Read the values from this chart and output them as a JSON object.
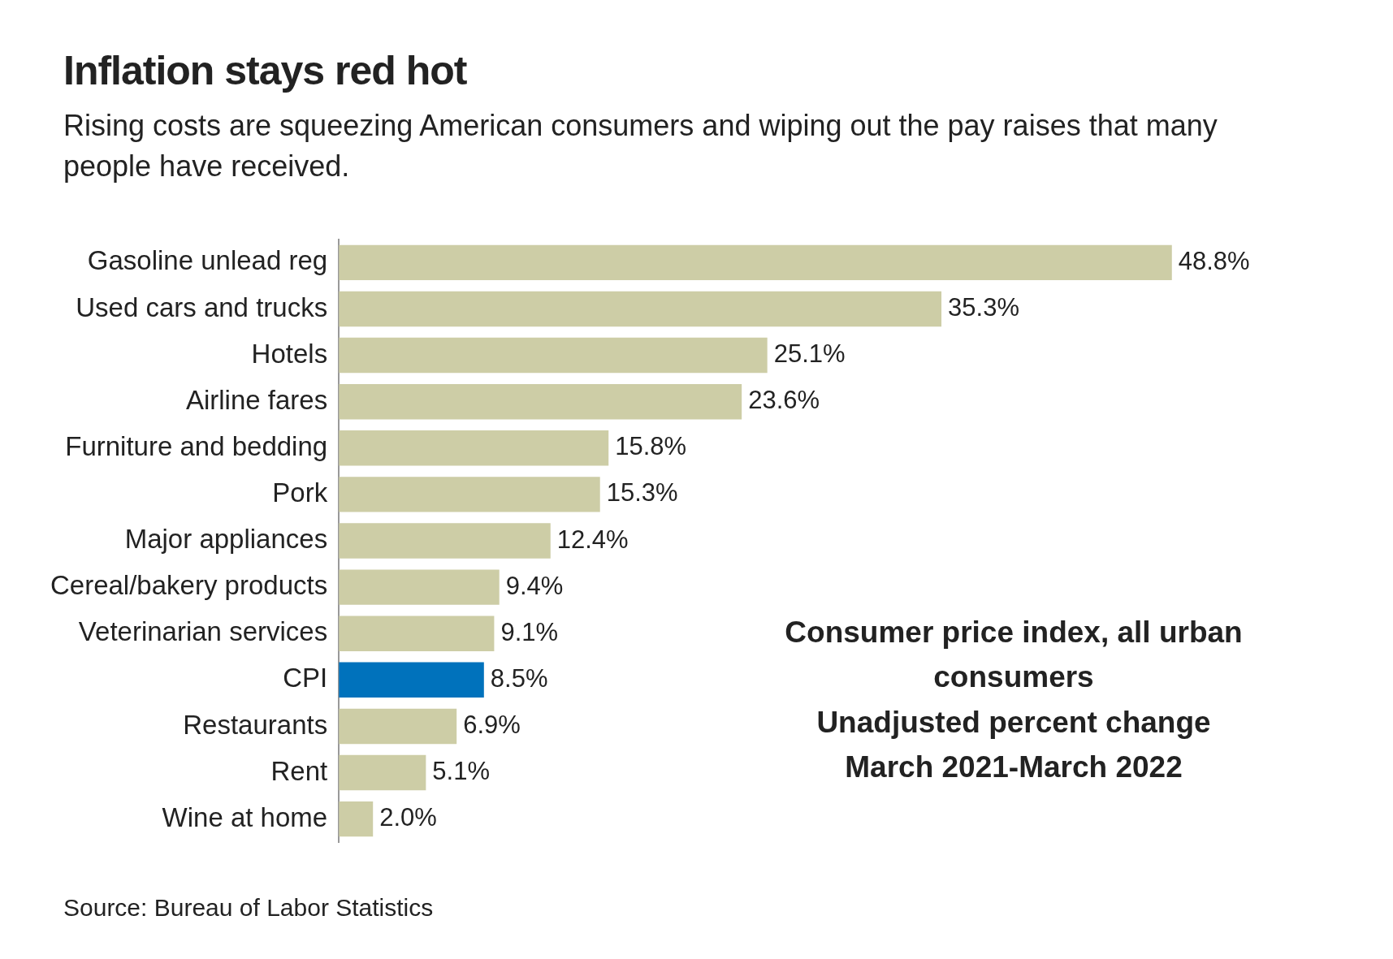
{
  "chart_data": {
    "type": "bar",
    "orientation": "horizontal",
    "title": "Inflation stays red hot",
    "subtitle": "Rising costs are squeezing American consumers and wiping out the pay raises that many people have received.",
    "categories": [
      "Gasoline unlead reg",
      "Used cars and trucks",
      "Hotels",
      "Airline fares",
      "Furniture and bedding",
      "Pork",
      "Major appliances",
      "Cereal/bakery products",
      "Veterinarian services",
      "CPI",
      "Restaurants",
      "Rent",
      "Wine at home"
    ],
    "values": [
      48.8,
      35.3,
      25.1,
      23.6,
      15.8,
      15.3,
      12.4,
      9.4,
      9.1,
      8.5,
      6.9,
      5.1,
      2.0
    ],
    "value_labels": [
      "48.8%",
      "35.3%",
      "25.1%",
      "23.6%",
      "15.8%",
      "15.3%",
      "12.4%",
      "9.4%",
      "9.1%",
      "8.5%",
      "6.9%",
      "5.1%",
      "2.0%"
    ],
    "colors": [
      "#cdcda6",
      "#cdcda6",
      "#cdcda6",
      "#cdcda6",
      "#cdcda6",
      "#cdcda6",
      "#cdcda6",
      "#cdcda6",
      "#cdcda6",
      "#0072bc",
      "#cdcda6",
      "#cdcda6",
      "#cdcda6"
    ],
    "tick_labels": "y",
    "legend": false,
    "grid": false,
    "annotations": [
      "Consumer price index, all urban consumers\nUnadjusted percent change\nMarch 2021-March 2022",
      "Source: Bureau of Labor Statistics"
    ]
  }
}
